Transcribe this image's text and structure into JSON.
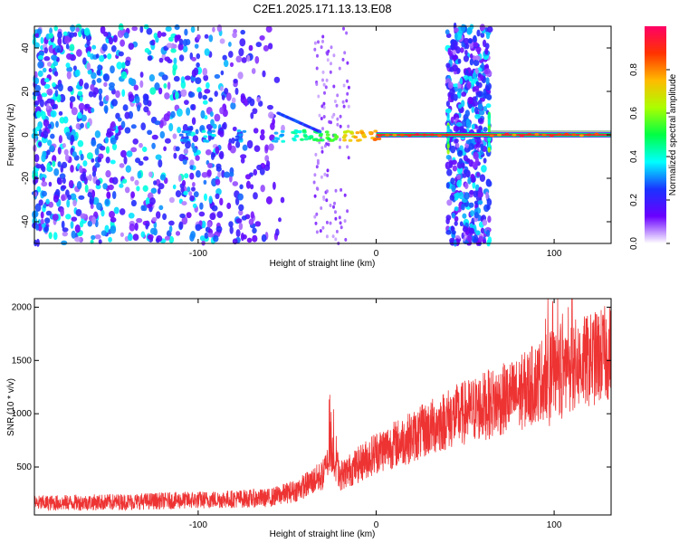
{
  "title": "C2E1.2025.171.13.13.E08",
  "colors": {
    "spectrogram_base": "#6a00ff",
    "trace": "#ee3333",
    "axis": "#000000"
  },
  "chart_data": [
    {
      "type": "heatmap",
      "xlabel": "Height of straight line (km)",
      "ylabel": "Frequency (Hz)",
      "xlim": [
        -192,
        132
      ],
      "ylim": [
        -50,
        50
      ],
      "x_ticks": [
        -100,
        0,
        100
      ],
      "y_ticks": [
        -40,
        -20,
        0,
        20,
        40
      ],
      "colorbar": {
        "label": "Normalized spectral amplitude",
        "range": [
          0,
          1
        ],
        "ticks": [
          "0.0",
          "0.2",
          "0.4",
          "0.6",
          "0.8"
        ],
        "colormap": [
          "#ffffff",
          "#6a00ff",
          "#1a33ff",
          "#00ffff",
          "#00ff44",
          "#aaff00",
          "#ffbb00",
          "#ff3300",
          "#ff0066"
        ]
      },
      "features": [
        {
          "label": "tone",
          "x_start": 0,
          "x_end": 132,
          "frequency": 0,
          "amplitude": 0.95
        },
        {
          "label": "noise",
          "x_start": -192,
          "x_end": -55,
          "amplitude": 0.35
        },
        {
          "label": "noise",
          "x_start": 40,
          "x_end": 64,
          "amplitude": 0.45
        }
      ]
    },
    {
      "type": "line",
      "xlabel": "Height of straight line (km)",
      "ylabel": "SNR (10 * v/v)",
      "xlim": [
        -192,
        132
      ],
      "ylim": [
        50,
        2080
      ],
      "x_ticks": [
        -100,
        0,
        100
      ],
      "y_ticks": [
        500,
        1000,
        1500,
        2000
      ],
      "series": [
        {
          "x": [
            -192,
            -150,
            -100,
            -60,
            -45,
            -30,
            -25,
            -20,
            -10,
            0,
            20,
            40,
            60,
            80,
            95,
            100,
            110,
            120,
            132
          ],
          "y": [
            160,
            170,
            190,
            210,
            280,
            420,
            650,
            420,
            520,
            640,
            780,
            950,
            1070,
            1180,
            1350,
            1380,
            1450,
            1500,
            1580
          ]
        }
      ]
    }
  ]
}
